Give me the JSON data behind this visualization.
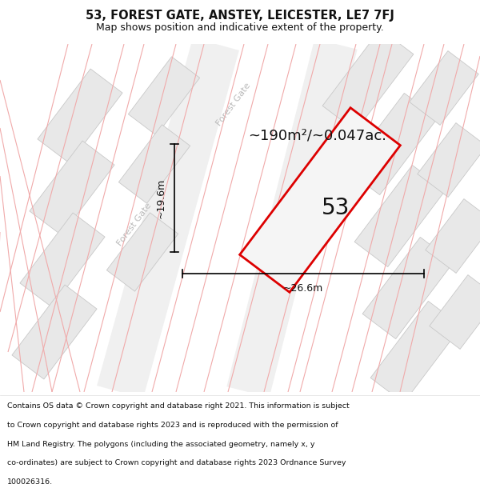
{
  "title_line1": "53, FOREST GATE, ANSTEY, LEICESTER, LE7 7FJ",
  "title_line2": "Map shows position and indicative extent of the property.",
  "footer_lines": [
    "Contains OS data © Crown copyright and database right 2021. This information is subject",
    "to Crown copyright and database rights 2023 and is reproduced with the permission of",
    "HM Land Registry. The polygons (including the associated geometry, namely x, y",
    "co-ordinates) are subject to Crown copyright and database rights 2023 Ordnance Survey",
    "100026316."
  ],
  "area_label": "~190m²/~0.047ac.",
  "property_number": "53",
  "dim_width": "~26.6m",
  "dim_height": "~19.6m",
  "street_label": "Forest Gate",
  "road_line_color": "#f0aaaa",
  "building_fill": "#e8e8e8",
  "building_edge": "#c8c8c8",
  "road_band_fill": "#f8f8f8",
  "property_stroke": "#dd0000",
  "property_fill": "#f5f5f5",
  "map_bg": "#fafafa",
  "title_fontsize": 10.5,
  "subtitle_fontsize": 9,
  "area_fontsize": 13,
  "number_fontsize": 20,
  "dim_fontsize": 9,
  "street_fontsize": 8,
  "footer_fontsize": 6.8,
  "street_text_color": "#bbbbbb"
}
